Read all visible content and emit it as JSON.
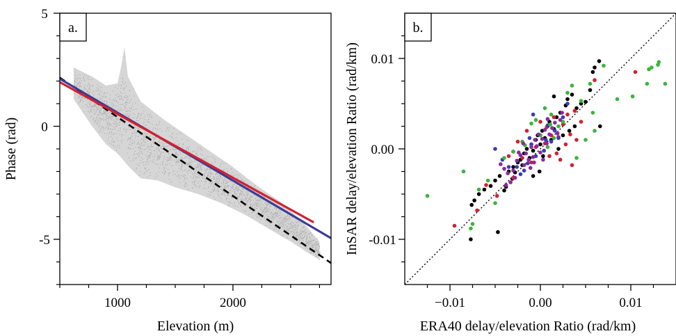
{
  "chart_data": [
    {
      "panel_label": "a.",
      "type": "scatter",
      "xlabel": "Elevation (m)",
      "ylabel": "Phase (rad)",
      "xlim": [
        500,
        2850
      ],
      "ylim": [
        -7,
        5
      ],
      "x_ticks": [
        {
          "value": 1000,
          "label": "1000"
        },
        {
          "value": 2000,
          "label": "2000"
        }
      ],
      "x_minor_ticks": [
        500,
        750,
        1250,
        1500,
        1750,
        2250,
        2500,
        2750
      ],
      "y_ticks": [
        {
          "value": 5,
          "label": "5"
        },
        {
          "value": 0,
          "label": "0"
        },
        {
          "value": -5,
          "label": "-5"
        }
      ],
      "y_minor_ticks": [
        4,
        3,
        2,
        1,
        -1,
        -2,
        -3,
        -4,
        -6,
        -7
      ],
      "point_cloud_color": "#b4b4b4",
      "point_cloud_envelope": {
        "upper": [
          [
            620,
            2.6
          ],
          [
            780,
            2.2
          ],
          [
            900,
            1.8
          ],
          [
            1000,
            1.9
          ],
          [
            1030,
            2.6
          ],
          [
            1060,
            3.5
          ],
          [
            1090,
            2.2
          ],
          [
            1200,
            1.1
          ],
          [
            1400,
            0.3
          ],
          [
            1600,
            -0.4
          ],
          [
            1800,
            -1.1
          ],
          [
            2000,
            -1.8
          ],
          [
            2200,
            -2.6
          ],
          [
            2400,
            -3.3
          ],
          [
            2600,
            -4.2
          ],
          [
            2750,
            -5.1
          ]
        ],
        "lower": [
          [
            620,
            1.2
          ],
          [
            780,
            0.0
          ],
          [
            900,
            -0.8
          ],
          [
            1000,
            -1.2
          ],
          [
            1100,
            -1.8
          ],
          [
            1200,
            -2.3
          ],
          [
            1350,
            -2.4
          ],
          [
            1500,
            -2.7
          ],
          [
            1700,
            -3.0
          ],
          [
            1900,
            -3.4
          ],
          [
            2100,
            -3.9
          ],
          [
            2300,
            -4.5
          ],
          [
            2500,
            -5.1
          ],
          [
            2650,
            -5.6
          ],
          [
            2750,
            -5.9
          ]
        ]
      },
      "series": [
        {
          "style": "solid",
          "color": "#d42030",
          "x": [
            500,
            2700
          ],
          "y": [
            1.95,
            -4.25
          ]
        },
        {
          "style": "solid",
          "color": "#3c3c96",
          "x": [
            500,
            2850
          ],
          "y": [
            2.1,
            -4.95
          ]
        },
        {
          "style": "dashed",
          "color": "#000000",
          "x": [
            500,
            2850
          ],
          "y": [
            2.15,
            -6.05
          ]
        }
      ]
    },
    {
      "panel_label": "b.",
      "type": "scatter",
      "xlabel": "ERA40 delay/elevation Ratio (rad/km)",
      "ylabel": "InSAR delay/elevation Ratio (rad/km)",
      "xlim": [
        -0.015,
        0.015
      ],
      "ylim": [
        -0.015,
        0.015
      ],
      "x_ticks": [
        {
          "value": -0.01,
          "label": "−0.01"
        },
        {
          "value": 0.0,
          "label": "0.00"
        },
        {
          "value": 0.01,
          "label": "0.01"
        }
      ],
      "x_minor_ticks": [
        -0.0125,
        -0.0075,
        -0.005,
        -0.0025,
        0.0025,
        0.005,
        0.0075,
        0.0125
      ],
      "y_ticks": [
        {
          "value": 0.01,
          "label": "0.01"
        },
        {
          "value": 0.0,
          "label": "0.00"
        },
        {
          "value": -0.01,
          "label": "-0.01"
        }
      ],
      "y_minor_ticks": [
        0.0125,
        0.0075,
        0.005,
        0.0025,
        -0.0025,
        -0.005,
        -0.0075,
        -0.0125
      ],
      "reference_line": {
        "style": "dotted",
        "color": "#000000",
        "x": [
          -0.015,
          0.015
        ],
        "y": [
          -0.015,
          0.015
        ]
      },
      "series": [
        {
          "color": "#000000",
          "points": [
            [
              -0.0077,
              -0.01
            ],
            [
              -0.0076,
              -0.0062
            ],
            [
              -0.0073,
              -0.0057
            ],
            [
              -0.0047,
              -0.0092
            ],
            [
              -0.0068,
              -0.005
            ],
            [
              -0.0062,
              -0.0045
            ],
            [
              -0.0055,
              -0.0041
            ],
            [
              -0.005,
              -0.0035
            ],
            [
              -0.0045,
              -0.003
            ],
            [
              -0.004,
              -0.0046
            ],
            [
              -0.0038,
              -0.0042
            ],
            [
              -0.0035,
              -0.0025
            ],
            [
              -0.003,
              -0.002
            ],
            [
              -0.0028,
              -0.0026
            ],
            [
              -0.0025,
              -0.0015
            ],
            [
              -0.0022,
              -0.0012
            ],
            [
              -0.002,
              -0.0018
            ],
            [
              -0.0018,
              -0.0005
            ],
            [
              -0.0015,
              0.0
            ],
            [
              -0.0012,
              -0.001
            ],
            [
              -0.001,
              0.0005
            ],
            [
              -0.0008,
              -0.0002
            ],
            [
              -0.0005,
              0.001
            ],
            [
              -0.0003,
              0.0015
            ],
            [
              0.0,
              0.0005
            ],
            [
              0.0002,
              0.002
            ],
            [
              0.0005,
              0.0012
            ],
            [
              0.0008,
              0.0025
            ],
            [
              0.001,
              0.003
            ],
            [
              0.0012,
              0.001
            ],
            [
              0.0015,
              0.0022
            ],
            [
              0.0018,
              0.0035
            ],
            [
              0.002,
              0.0
            ],
            [
              0.0022,
              0.004
            ],
            [
              0.0025,
              0.0015
            ],
            [
              0.0028,
              0.0048
            ],
            [
              0.003,
              0.0055
            ],
            [
              0.0032,
              0.002
            ],
            [
              0.0035,
              0.006
            ],
            [
              0.0038,
              0.0025
            ],
            [
              0.004,
              0.0045
            ],
            [
              0.0045,
              0.005
            ],
            [
              0.005,
              0.0052
            ],
            [
              0.0055,
              0.0065
            ],
            [
              0.006,
              0.009
            ],
            [
              0.0065,
              0.0097
            ],
            [
              0.0066,
              0.0025
            ],
            [
              0.0058,
              0.0085
            ],
            [
              -0.0001,
              -0.0025
            ],
            [
              -0.0008,
              -0.003
            ],
            [
              0.0003,
              -0.0008
            ],
            [
              -0.0031,
              -0.0033
            ],
            [
              0.0015,
              0.0058
            ]
          ]
        },
        {
          "color": "#d42030",
          "points": [
            [
              -0.0095,
              -0.0085
            ],
            [
              -0.007,
              -0.0068
            ],
            [
              -0.006,
              -0.004
            ],
            [
              -0.0048,
              -0.0052
            ],
            [
              -0.0035,
              -0.0008
            ],
            [
              -0.003,
              -0.0032
            ],
            [
              -0.002,
              -0.001
            ],
            [
              -0.0015,
              0.002
            ],
            [
              -0.001,
              -0.0015
            ],
            [
              -0.0005,
              0.0002
            ],
            [
              0.0,
              0.003
            ],
            [
              0.0005,
              0.0006
            ],
            [
              0.001,
              -0.0008
            ],
            [
              0.0015,
              0.0035
            ],
            [
              0.002,
              0.0013
            ],
            [
              0.0022,
              -0.0012
            ],
            [
              0.0025,
              0.0027
            ],
            [
              0.0028,
              0.0005
            ],
            [
              0.003,
              0.0038
            ],
            [
              0.0033,
              0.0016
            ],
            [
              0.0035,
              -0.0018
            ],
            [
              0.0038,
              0.0042
            ],
            [
              0.004,
              0.001
            ],
            [
              0.0045,
              0.003
            ],
            [
              0.006,
              0.0076
            ],
            [
              0.0105,
              0.0085
            ],
            [
              0.0012,
              0.0015
            ],
            [
              -0.0025,
              0.0008
            ],
            [
              0.0007,
              0.0024
            ],
            [
              0.0018,
              -0.0005
            ]
          ]
        },
        {
          "color": "#3c3cb4",
          "points": [
            [
              -0.005,
              0.0
            ],
            [
              -0.0042,
              -0.0012
            ],
            [
              -0.0035,
              -0.002
            ],
            [
              -0.003,
              -0.0003
            ],
            [
              -0.0026,
              -0.002
            ],
            [
              -0.0022,
              -0.0028
            ],
            [
              -0.0018,
              -0.0024
            ],
            [
              -0.0014,
              -0.0016
            ],
            [
              -0.001,
              0.0005
            ],
            [
              -0.0005,
              -0.0008
            ],
            [
              0.0,
              0.0015
            ],
            [
              0.0004,
              -0.0002
            ],
            [
              0.0008,
              0.0026
            ],
            [
              0.0012,
              0.0008
            ],
            [
              0.0016,
              0.002
            ],
            [
              -0.0008,
              0.0038
            ],
            [
              0.002,
              0.0012
            ],
            [
              0.0025,
              0.0035
            ],
            [
              -0.0012,
              0.0012
            ],
            [
              0.0006,
              0.001
            ],
            [
              0.003,
              0.005
            ]
          ]
        },
        {
          "color": "#3cb43c",
          "points": [
            [
              -0.0125,
              -0.0052
            ],
            [
              -0.0085,
              -0.0025
            ],
            [
              -0.0077,
              -0.0088
            ],
            [
              -0.0075,
              -0.0083
            ],
            [
              -0.0068,
              -0.0045
            ],
            [
              -0.0058,
              -0.0035
            ],
            [
              -0.005,
              -0.006
            ],
            [
              -0.004,
              -0.001
            ],
            [
              -0.003,
              -0.0003
            ],
            [
              -0.002,
              0.0008
            ],
            [
              -0.001,
              0.0028
            ],
            [
              -0.0005,
              0.0032
            ],
            [
              0.0,
              0.0015
            ],
            [
              0.0005,
              0.0045
            ],
            [
              0.0008,
              0.0002
            ],
            [
              0.0012,
              0.0038
            ],
            [
              0.0015,
              0.0012
            ],
            [
              0.002,
              0.0025
            ],
            [
              0.0025,
              0.003
            ],
            [
              0.003,
              0.0062
            ],
            [
              0.0035,
              0.007
            ],
            [
              0.004,
              -0.001
            ],
            [
              0.0045,
              0.0053
            ],
            [
              0.005,
              0.001
            ],
            [
              0.0055,
              0.0072
            ],
            [
              0.0058,
              0.004
            ],
            [
              0.006,
              0.002
            ],
            [
              0.007,
              0.0092
            ],
            [
              0.0085,
              0.0055
            ],
            [
              0.0102,
              0.0058
            ],
            [
              0.0118,
              0.0072
            ],
            [
              0.012,
              0.0088
            ],
            [
              0.0123,
              0.009
            ],
            [
              0.013,
              0.0093
            ],
            [
              0.0131,
              0.0096
            ],
            [
              0.0138,
              0.0072
            ],
            [
              0.0011,
              0.0027
            ],
            [
              -0.0017,
              0.0004
            ]
          ]
        },
        {
          "color": "#8a2aa0",
          "points": [
            [
              -0.0044,
              -0.0017
            ],
            [
              -0.004,
              -0.0022
            ],
            [
              -0.0036,
              -0.0027
            ],
            [
              -0.003,
              -0.0024
            ],
            [
              -0.0026,
              -0.0013
            ],
            [
              -0.0022,
              -0.0007
            ],
            [
              -0.0018,
              -0.0018
            ],
            [
              -0.0016,
              -0.0005
            ],
            [
              -0.0013,
              -0.0012
            ],
            [
              -0.001,
              0.0002
            ],
            [
              -0.0008,
              -0.0009
            ],
            [
              -0.0006,
              0.001
            ],
            [
              -0.0004,
              0.0003
            ],
            [
              -0.0002,
              0.0016
            ],
            [
              0.0,
              -0.0004
            ],
            [
              0.0002,
              0.0011
            ],
            [
              0.0005,
              0.0021
            ],
            [
              0.0007,
              0.0006
            ],
            [
              0.001,
              0.0016
            ],
            [
              0.0013,
              0.0023
            ],
            [
              0.0016,
              0.0029
            ],
            [
              0.0019,
              0.0017
            ],
            [
              0.0022,
              0.0032
            ],
            [
              -0.0033,
              -0.0037
            ],
            [
              -0.0028,
              -0.0032
            ],
            [
              -0.0011,
              -0.0021
            ],
            [
              -0.0007,
              -0.0015
            ],
            [
              0.0003,
              -0.0012
            ],
            [
              0.0008,
              0.0033
            ],
            [
              -0.0019,
              0.0006
            ],
            [
              -0.0024,
              -0.0004
            ],
            [
              -0.0038,
              -0.004
            ],
            [
              0.0024,
              0.004
            ]
          ]
        }
      ]
    }
  ]
}
